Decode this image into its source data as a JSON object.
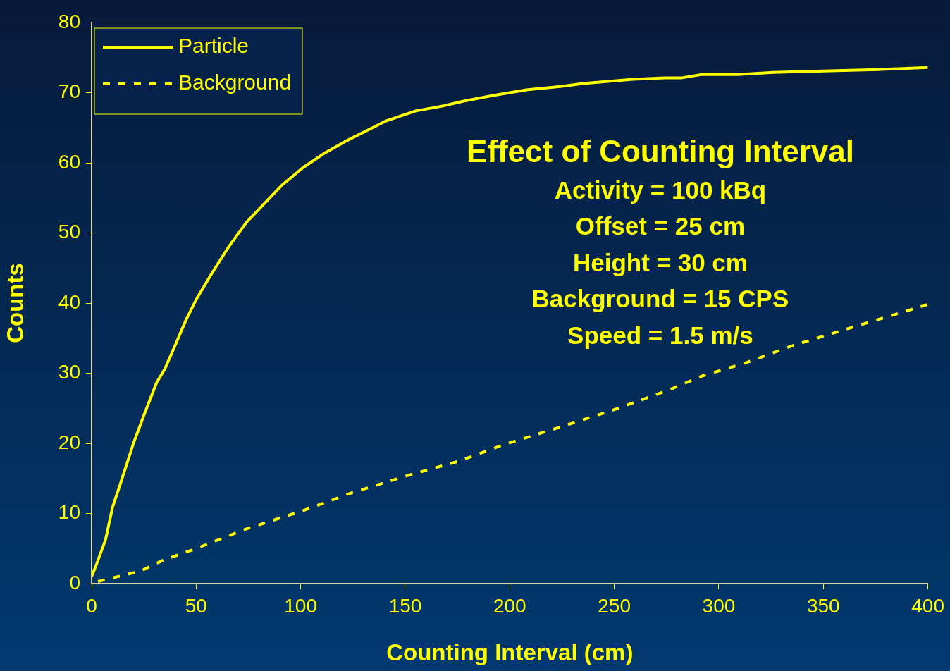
{
  "chart_data": {
    "type": "line",
    "title": "Effect of Counting Interval",
    "annotations": [
      "Activity = 100 kBq",
      "Offset = 25 cm",
      "Height = 30 cm",
      "Background = 15 CPS",
      "Speed = 1.5 m/s"
    ],
    "xlabel": "Counting Interval (cm)",
    "ylabel": "Counts",
    "xlim": [
      0,
      400
    ],
    "xticks": [
      0,
      50,
      100,
      150,
      200,
      250,
      300,
      350,
      400
    ],
    "ylim": [
      0,
      80
    ],
    "yticks": [
      0,
      10,
      20,
      30,
      40,
      50,
      60,
      70,
      80
    ],
    "grid": false,
    "legend": "top left",
    "marker": "none",
    "series": [
      {
        "name": "Particle",
        "color": "#ffff00",
        "line_style": "solid",
        "x": [
          0,
          2.4,
          6.7,
          10,
          13.4,
          20,
          25,
          31,
          35,
          40,
          45,
          50,
          57,
          65.5,
          74,
          82,
          91,
          101,
          111,
          121,
          131,
          141,
          151,
          155,
          168,
          178,
          192,
          208,
          225,
          235,
          259,
          274,
          282,
          292,
          309,
          326,
          350,
          376,
          400
        ],
        "values": [
          1,
          2.8,
          6.3,
          10.9,
          13.9,
          20,
          24,
          28.6,
          30.6,
          34,
          37.5,
          40.5,
          44,
          48,
          51.5,
          54,
          56.8,
          59.3,
          61.3,
          63,
          64.5,
          66,
          67,
          67.4,
          68.1,
          68.8,
          69.6,
          70.4,
          70.9,
          71.3,
          71.9,
          72.1,
          72.1,
          72.6,
          72.6,
          72.9,
          73.1,
          73.3,
          73.6
        ]
      },
      {
        "name": "Background",
        "color": "#ffff00",
        "line_style": "dashed",
        "x": [
          3,
          23.5,
          34,
          50,
          74,
          101,
          124,
          151,
          175,
          198,
          225,
          249,
          276,
          292,
          313,
          336,
          360,
          400
        ],
        "values": [
          0.3,
          1.8,
          3.3,
          5,
          7.8,
          10.4,
          12.9,
          15.4,
          17.4,
          19.9,
          22.4,
          24.7,
          27.6,
          29.6,
          31.5,
          34,
          36.2,
          39.8
        ]
      }
    ]
  }
}
